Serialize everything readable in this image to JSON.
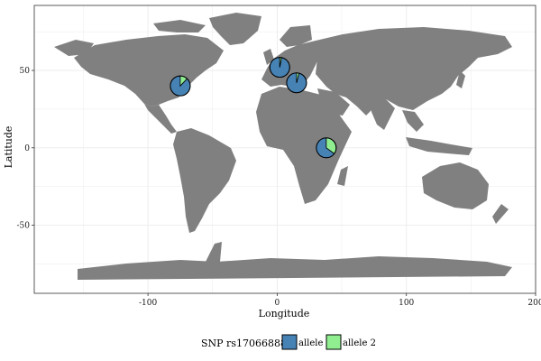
{
  "chart_data": {
    "type": "pie-map",
    "xlabel": "Longitude",
    "ylabel": "Latitude",
    "xlim": [
      -188,
      200
    ],
    "ylim": [
      -94,
      92
    ],
    "x_ticks": [
      -100,
      0,
      100,
      200
    ],
    "y_ticks": [
      -50,
      0,
      50
    ],
    "x_tick_labels": [
      "-100",
      "0",
      "100",
      "200"
    ],
    "y_tick_labels": [
      "-50",
      "0",
      "50"
    ],
    "grid": true,
    "legend": {
      "title": "SNP rs17066888",
      "position": "bottom",
      "entries": [
        {
          "label": "allele 1",
          "color": "#4682B4"
        },
        {
          "label": "allele 2",
          "color": "#90EE90"
        }
      ]
    },
    "points": [
      {
        "lon": -75,
        "lat": 40,
        "allele_1": 0.88,
        "allele_2": 0.12
      },
      {
        "lon": 2,
        "lat": 52,
        "allele_1": 0.97,
        "allele_2": 0.03
      },
      {
        "lon": 15,
        "lat": 42,
        "allele_1": 0.96,
        "allele_2": 0.04
      },
      {
        "lon": 38,
        "lat": 0,
        "allele_1": 0.65,
        "allele_2": 0.35
      }
    ]
  },
  "colors": {
    "land": "#808080",
    "panel_background": "#ffffff",
    "grid": "#ebebeb",
    "panel_border": "#333333"
  }
}
